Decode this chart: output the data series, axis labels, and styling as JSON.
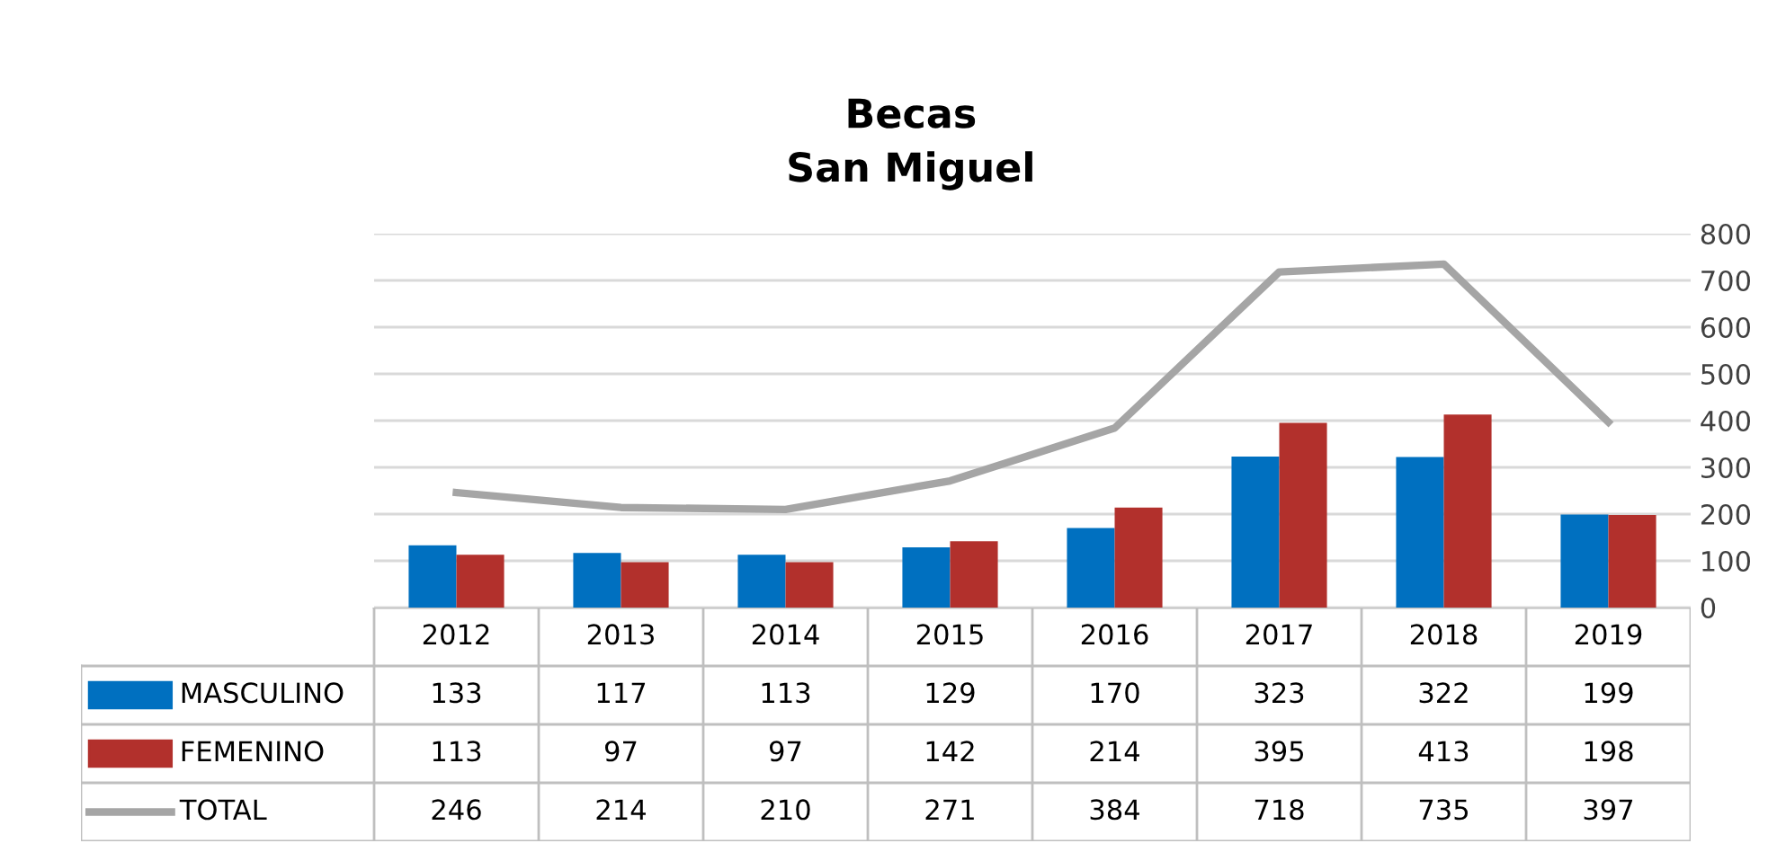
{
  "chart_data": {
    "type": "bar",
    "title": "Becas\nSan Miguel",
    "categories": [
      "2012",
      "2013",
      "2014",
      "2015",
      "2016",
      "2017",
      "2018",
      "2019"
    ],
    "series": [
      {
        "name": "MASCULINO",
        "color": "#0070c0",
        "values": [
          133,
          117,
          113,
          129,
          170,
          323,
          322,
          199
        ]
      },
      {
        "name": "FEMENINO",
        "color": "#b2302c",
        "values": [
          113,
          97,
          97,
          142,
          214,
          395,
          413,
          198
        ]
      },
      {
        "name": "TOTAL",
        "type": "line",
        "color": "#a5a5a5",
        "values": [
          246,
          214,
          210,
          271,
          384,
          718,
          735,
          397
        ]
      }
    ],
    "ylim": [
      0,
      800
    ],
    "yticks": [
      0,
      100,
      200,
      300,
      400,
      500,
      600,
      700,
      800
    ],
    "grid": "y",
    "legend": "bottom",
    "data_labels": true,
    "marker": "none",
    "line_style": "solid"
  }
}
